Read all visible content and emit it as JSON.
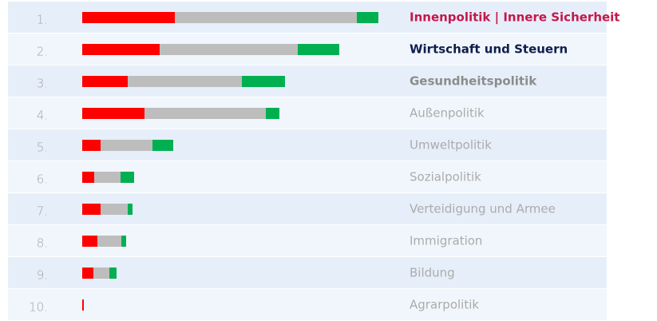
{
  "chart_data": {
    "type": "ranked-stacked-bar",
    "ranks": [
      "1.",
      "2.",
      "3.",
      "4.",
      "5.",
      "6.",
      "7.",
      "8.",
      "9.",
      "10."
    ],
    "categories": [
      "Innenpolitik | Innere Sicherheit",
      "Wirtschaft und Steuern",
      "Gesundheitspolitik",
      "Außenpolitik",
      "Umweltpolitik",
      "Sozialpolitik",
      "Verteidigung und Armee",
      "Immigration",
      "Bildung",
      "Agrarpolitik"
    ],
    "label_colors": [
      "#c8174a",
      "#0e1f4d",
      "#8c8c8c",
      "#ababab",
      "#ababab",
      "#ababab",
      "#ababab",
      "#ababab",
      "#ababab",
      "#ababab"
    ],
    "label_bold": [
      true,
      true,
      true,
      false,
      false,
      false,
      false,
      false,
      false,
      false
    ],
    "xlim": [
      0,
      400
    ],
    "series": [
      {
        "color": "#ff0000",
        "values": [
          116,
          97,
          57,
          78,
          23,
          15,
          23,
          19,
          14,
          2
        ]
      },
      {
        "color": "#bdbdbd",
        "values": [
          228,
          173,
          143,
          152,
          65,
          33,
          34,
          30,
          20,
          0
        ]
      },
      {
        "color": "#00b050",
        "values": [
          27,
          52,
          54,
          17,
          26,
          17,
          6,
          6,
          9,
          0
        ]
      }
    ]
  }
}
